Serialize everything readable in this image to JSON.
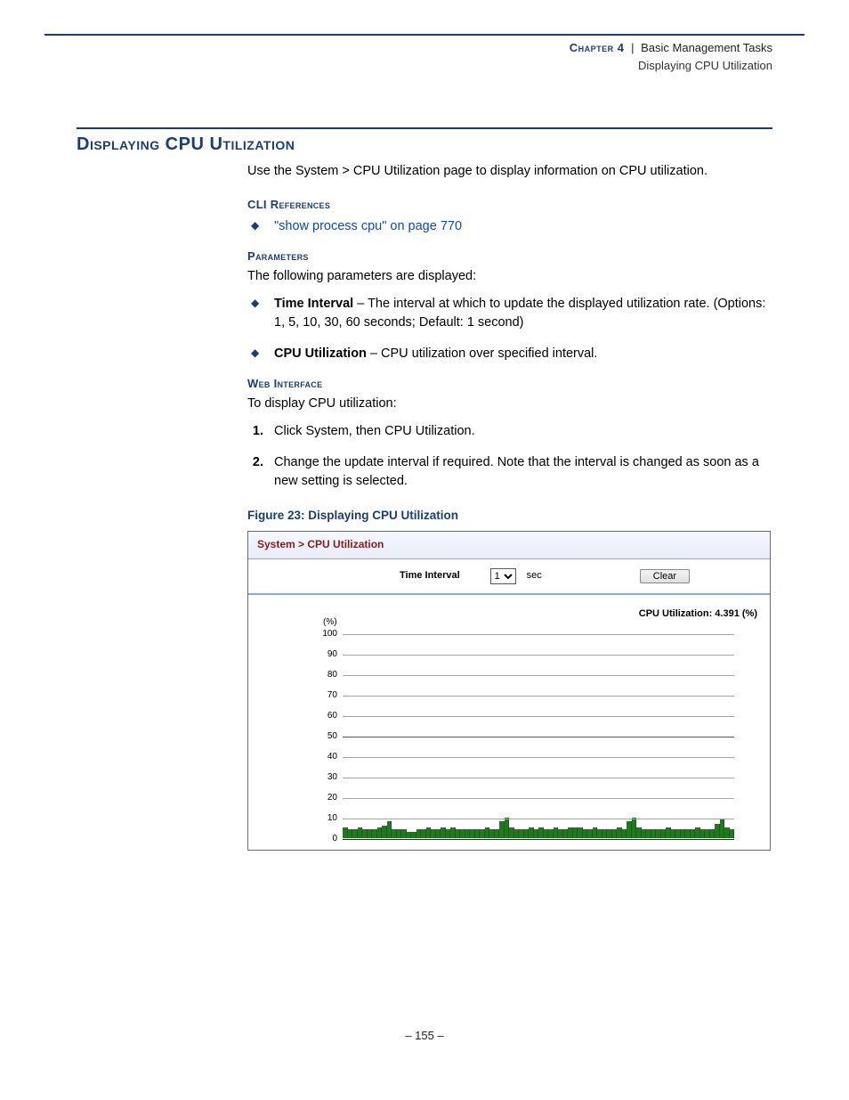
{
  "header": {
    "chapter_label": "Chapter 4",
    "chapter_title": "Basic Management Tasks",
    "section_running": "Displaying CPU Utilization"
  },
  "section": {
    "title": "Displaying CPU Utilization",
    "intro": "Use the System > CPU Utilization page to display information on CPU utilization.",
    "cli_heading": "CLI References",
    "cli_link": "\"show process cpu\" on page 770",
    "params_heading": "Parameters",
    "params_intro": "The following parameters are displayed:",
    "param1_label": "Time Interval",
    "param1_text": " – The interval at which to update the displayed utilization rate. (Options: 1, 5, 10, 30, 60 seconds; Default: 1 second)",
    "param2_label": "CPU Utilization",
    "param2_text": " – CPU utilization over specified interval.",
    "web_heading": "Web Interface",
    "web_intro": "To display CPU utilization:",
    "step1": "Click System, then CPU Utilization.",
    "step2": "Change the update interval if required. Note that the interval is changed as soon as a new setting is selected.",
    "figure_caption": "Figure 23:  Displaying CPU Utilization"
  },
  "screenshot": {
    "breadcrumb": "System > CPU Utilization",
    "time_interval_label": "Time Interval",
    "time_interval_value": "1",
    "time_interval_unit": "sec",
    "clear_button": "Clear",
    "cpu_readout": "CPU Utilization: 4.391 (%)",
    "chart": {
      "type": "area",
      "y_unit_label": "(%)",
      "ylim": [
        0,
        100
      ],
      "ytick_step": 10,
      "yticks": [
        100,
        90,
        80,
        70,
        60,
        50,
        40,
        30,
        20,
        10,
        0
      ],
      "gridline_color": "#a5a5a5",
      "baseline_color": "#2a2a2a",
      "threshold_line": {
        "value": 50,
        "color": "#d02020"
      },
      "series_color": "#1f7a1f",
      "background_color": "#ffffff",
      "label_fontsize": 10,
      "values": [
        5,
        4,
        4,
        5,
        4,
        4,
        4,
        5,
        6,
        8,
        4,
        4,
        4,
        3,
        3,
        4,
        4,
        5,
        4,
        4,
        5,
        4,
        5,
        4,
        4,
        4,
        4,
        4,
        4,
        5,
        4,
        4,
        8,
        10,
        5,
        4,
        4,
        4,
        5,
        4,
        5,
        4,
        4,
        5,
        4,
        4,
        5,
        5,
        5,
        4,
        4,
        5,
        4,
        4,
        4,
        4,
        5,
        4,
        8,
        10,
        5,
        4,
        4,
        4,
        4,
        4,
        5,
        4,
        4,
        4,
        4,
        4,
        5,
        4,
        4,
        4,
        7,
        9,
        5,
        4
      ]
    }
  },
  "page_number": "–  155  –"
}
